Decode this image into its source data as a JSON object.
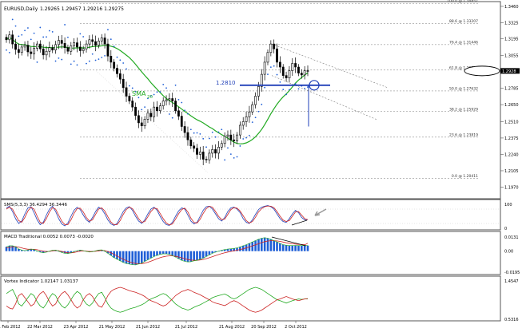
{
  "header": {
    "symbol": "EURUSD,Daily",
    "ohlc": "1.29265 1.29457 1.29216 1.29275"
  },
  "colors": {
    "candle": "#000000",
    "sma": "#22aa22",
    "sar": "#1f5fd6",
    "fib": "#777777",
    "annotation": "#1f3fb8",
    "stoch_main": "#1f3fb8",
    "stoch_signal": "#cc2222",
    "macd_hist": "#1f5fd6",
    "macd_signal": "#cc2222",
    "vortex_plus": "#22aa22",
    "vortex_minus": "#cc2222",
    "arrow": "#999999"
  },
  "chart_data": [
    {
      "type": "candlestick",
      "title": "EURUSD,Daily",
      "ylim": [
        1.196,
        1.346
      ],
      "y_ticks": [
        "1.3460",
        "1.3325",
        "1.3195",
        "1.3055",
        "1.2920",
        "1.2785",
        "1.2650",
        "1.2510",
        "1.2375",
        "1.2240",
        "1.2105",
        "1.1970"
      ],
      "x_ticks": [
        "21 Feb 2012",
        "22 Mar 2012",
        "23 Apr 2012",
        "21 May 2012",
        "21 Jun 2012",
        "21 Jul 2012",
        "21 Aug 2012",
        "20 Sep 2012",
        "2 Oct 2012"
      ],
      "close": [
        1.3185,
        1.3225,
        1.315,
        1.3105,
        1.308,
        1.3125,
        1.314,
        1.3085,
        1.307,
        1.3115,
        1.315,
        1.311,
        1.306,
        1.309,
        1.312,
        1.31,
        1.3145,
        1.318,
        1.3155,
        1.312,
        1.309,
        1.3135,
        1.316,
        1.3125,
        1.3095,
        1.311,
        1.315,
        1.3185,
        1.317,
        1.314,
        1.3175,
        1.32,
        1.315,
        1.305,
        1.3,
        1.295,
        1.2905,
        1.286,
        1.279,
        1.272,
        1.268,
        1.263,
        1.256,
        1.25,
        1.2475,
        1.253,
        1.258,
        1.255,
        1.263,
        1.26,
        1.264,
        1.268,
        1.269,
        1.27,
        1.268,
        1.26,
        1.2555,
        1.247,
        1.242,
        1.236,
        1.231,
        1.229,
        1.224,
        1.226,
        1.22,
        1.2195,
        1.225,
        1.228,
        1.225,
        1.23,
        1.233,
        1.239,
        1.24,
        1.236,
        1.235,
        1.24,
        1.248,
        1.251,
        1.255,
        1.259,
        1.265,
        1.272,
        1.28,
        1.29,
        1.3,
        1.308,
        1.315,
        1.311,
        1.3,
        1.296,
        1.289,
        1.287,
        1.293,
        1.299,
        1.296,
        1.291,
        1.2895,
        1.293,
        1.2928
      ],
      "series": [
        {
          "name": "SMA20"
        },
        {
          "name": "Parabolic SAR"
        }
      ],
      "fib_levels": [
        {
          "label": "100.0 @ 1.34857",
          "value": 1.3485
        },
        {
          "label": "88.6 @ 1.33207",
          "value": 1.332
        },
        {
          "label": "76.4 @ 1.31446",
          "value": 1.3145
        },
        {
          "label": "61.8 @ 1.29350",
          "value": 1.2935
        },
        {
          "label": "50.0 @ 1.27632",
          "value": 1.2763
        },
        {
          "label": "38.2 @ 1.25929",
          "value": 1.2593
        },
        {
          "label": "23.6 @ 1.23819",
          "value": 1.2382
        },
        {
          "label": "0.0 @ 1.20411",
          "value": 1.2041
        }
      ],
      "current_price": "1.2928",
      "annotations": {
        "support_label": "1.2810",
        "support_value": 1.281,
        "sma_label": "SMA",
        "sma_sub": "20"
      }
    },
    {
      "type": "line",
      "title": "SMS(5,3,3) 36.4294 36.3446",
      "ylim": [
        0,
        100
      ],
      "y_ticks": [
        "100",
        "0"
      ],
      "series": [
        {
          "name": "%K",
          "values": [
            85,
            92,
            70,
            40,
            20,
            30,
            60,
            85,
            90,
            65,
            35,
            15,
            25,
            55,
            80,
            92,
            70,
            40,
            18,
            10,
            22,
            50,
            75,
            88,
            78,
            55,
            35,
            25,
            45,
            70,
            88,
            80,
            60,
            35,
            18,
            12,
            20,
            45,
            70,
            85,
            90,
            75,
            50,
            30,
            20,
            35,
            60,
            80,
            88,
            75,
            50,
            28,
            15,
            12,
            25,
            50,
            72,
            85,
            80,
            55,
            30,
            18,
            25,
            50,
            75,
            90,
            92,
            80,
            60,
            40,
            30,
            45,
            70,
            85,
            88,
            80,
            65,
            40,
            25,
            20,
            35,
            58,
            78,
            88,
            92,
            95,
            90,
            80,
            60,
            40,
            28,
            25,
            40,
            60,
            75,
            65,
            45,
            35,
            36
          ]
        },
        {
          "name": "%D",
          "values": [
            80,
            88,
            80,
            55,
            32,
            25,
            45,
            72,
            88,
            80,
            50,
            25,
            20,
            40,
            68,
            86,
            80,
            55,
            30,
            15,
            15,
            35,
            62,
            82,
            84,
            68,
            45,
            30,
            35,
            58,
            80,
            85,
            72,
            48,
            26,
            15,
            15,
            32,
            58,
            78,
            88,
            82,
            62,
            40,
            25,
            28,
            48,
            70,
            84,
            82,
            62,
            40,
            22,
            14,
            18,
            38,
            60,
            78,
            84,
            68,
            42,
            24,
            22,
            38,
            62,
            82,
            92,
            88,
            70,
            50,
            36,
            38,
            58,
            78,
            86,
            84,
            72,
            52,
            32,
            22,
            28,
            46,
            68,
            82,
            90,
            93,
            92,
            86,
            70,
            50,
            34,
            28,
            32,
            50,
            68,
            70,
            55,
            40,
            36
          ]
        }
      ]
    },
    {
      "type": "line",
      "title": "MACD Traditional 0.0052 0.0073 -0.0020",
      "ylim": [
        -0.0195,
        0.0131
      ],
      "y_ticks": [
        "0.0131",
        "0.00",
        "-0.0195"
      ],
      "series": [
        {
          "name": "MACD",
          "values": [
            0.004,
            0.005,
            0.005,
            0.004,
            0.002,
            0.001,
            0.0005,
            0.001,
            0.002,
            0.0015,
            0.0,
            -0.001,
            -0.0015,
            -0.001,
            0.0,
            0.0008,
            0.001,
            0.0,
            -0.0012,
            -0.002,
            -0.0022,
            -0.0015,
            -0.0005,
            0.0005,
            0.001,
            0.0005,
            -0.0003,
            -0.0008,
            -0.0005,
            0.0003,
            0.001,
            0.0012,
            0.0,
            -0.002,
            -0.004,
            -0.006,
            -0.0075,
            -0.009,
            -0.0105,
            -0.0115,
            -0.012,
            -0.0125,
            -0.0128,
            -0.012,
            -0.011,
            -0.0095,
            -0.008,
            -0.0065,
            -0.005,
            -0.004,
            -0.003,
            -0.0025,
            -0.0025,
            -0.003,
            -0.004,
            -0.0055,
            -0.007,
            -0.0085,
            -0.0095,
            -0.01,
            -0.0098,
            -0.009,
            -0.0085,
            -0.0075,
            -0.0065,
            -0.005,
            -0.0035,
            -0.002,
            -0.001,
            0.0,
            0.0008,
            0.0015,
            0.002,
            0.0022,
            0.0025,
            0.003,
            0.004,
            0.005,
            0.006,
            0.0072,
            0.0085,
            0.0098,
            0.011,
            0.012,
            0.0125,
            0.012,
            0.011,
            0.0098,
            0.0085,
            0.0072,
            0.006,
            0.0055,
            0.0052,
            0.0052,
            0.0053,
            0.0052,
            0.0052,
            0.0052,
            0.0052
          ]
        },
        {
          "name": "Signal",
          "values": [
            0.003,
            0.0035,
            0.004,
            0.0042,
            0.0038,
            0.003,
            0.0022,
            0.0018,
            0.0018,
            0.0017,
            0.0013,
            0.0006,
            0.0,
            -0.0003,
            -0.0002,
            0.0002,
            0.0006,
            0.0004,
            -0.0002,
            -0.001,
            -0.0016,
            -0.0016,
            -0.0012,
            -0.0006,
            0.0,
            0.0002,
            0.0,
            -0.0003,
            -0.0004,
            -0.0001,
            0.0003,
            0.0007,
            0.0005,
            -0.0004,
            -0.0016,
            -0.003,
            -0.0045,
            -0.006,
            -0.0075,
            -0.0088,
            -0.0099,
            -0.0108,
            -0.0115,
            -0.0117,
            -0.0116,
            -0.0111,
            -0.0103,
            -0.0093,
            -0.0082,
            -0.0071,
            -0.0061,
            -0.0053,
            -0.0047,
            -0.0044,
            -0.0044,
            -0.0048,
            -0.0054,
            -0.0062,
            -0.0071,
            -0.0078,
            -0.0083,
            -0.0085,
            -0.0085,
            -0.0082,
            -0.0077,
            -0.007,
            -0.0061,
            -0.0051,
            -0.0042,
            -0.0032,
            -0.0023,
            -0.0015,
            -0.0008,
            -0.0002,
            0.0003,
            0.0009,
            0.0015,
            0.0022,
            0.003,
            0.0039,
            0.0049,
            0.0059,
            0.0069,
            0.0079,
            0.0088,
            0.0094,
            0.0097,
            0.0097,
            0.0095,
            0.009,
            0.0084,
            0.0078,
            0.0073,
            0.0069,
            0.0066,
            0.0063,
            0.0061,
            0.0059,
            0.0073
          ]
        }
      ]
    },
    {
      "type": "line",
      "title": "Vortex Indicator 1.02147 1.03137",
      "ylim": [
        0.5316,
        1.4547
      ],
      "y_ticks": [
        "1.4547",
        "0.5316"
      ],
      "series": [
        {
          "name": "VI+",
          "values": [
            1.15,
            1.2,
            1.25,
            1.1,
            0.9,
            0.85,
            0.95,
            1.05,
            1.15,
            1.1,
            0.95,
            0.85,
            0.8,
            0.9,
            1.05,
            1.15,
            1.1,
            0.95,
            0.85,
            0.8,
            0.88,
            1.0,
            1.12,
            1.2,
            1.15,
            1.0,
            0.9,
            0.85,
            0.92,
            1.05,
            1.15,
            1.18,
            1.05,
            0.9,
            0.8,
            0.75,
            0.72,
            0.7,
            0.72,
            0.75,
            0.78,
            0.8,
            0.82,
            0.85,
            0.88,
            0.92,
            0.98,
            1.02,
            1.05,
            1.08,
            1.12,
            1.15,
            1.12,
            1.05,
            0.98,
            0.9,
            0.85,
            0.8,
            0.78,
            0.75,
            0.78,
            0.82,
            0.85,
            0.88,
            0.92,
            0.96,
            1.0,
            1.05,
            1.08,
            1.1,
            1.12,
            1.14,
            1.1,
            1.05,
            1.02,
            1.05,
            1.1,
            1.15,
            1.2,
            1.25,
            1.28,
            1.3,
            1.28,
            1.25,
            1.2,
            1.15,
            1.1,
            1.05,
            1.0,
            0.98,
            0.95,
            0.92,
            0.95,
            0.98,
            1.0,
            1.02,
            1.01,
            1.02,
            1.02
          ]
        },
        {
          "name": "VI-",
          "values": [
            0.85,
            0.8,
            0.78,
            0.9,
            1.1,
            1.15,
            1.05,
            0.95,
            0.85,
            0.9,
            1.05,
            1.15,
            1.2,
            1.1,
            0.95,
            0.85,
            0.9,
            1.05,
            1.15,
            1.2,
            1.12,
            1.0,
            0.88,
            0.8,
            0.85,
            1.0,
            1.1,
            1.15,
            1.08,
            0.95,
            0.85,
            0.82,
            0.95,
            1.1,
            1.2,
            1.25,
            1.28,
            1.3,
            1.28,
            1.25,
            1.22,
            1.2,
            1.18,
            1.15,
            1.12,
            1.08,
            1.02,
            0.98,
            0.95,
            0.92,
            0.88,
            0.85,
            0.88,
            0.95,
            1.02,
            1.1,
            1.15,
            1.2,
            1.22,
            1.25,
            1.22,
            1.18,
            1.15,
            1.12,
            1.08,
            1.04,
            1.0,
            0.95,
            0.92,
            0.9,
            0.88,
            0.86,
            0.9,
            0.95,
            0.98,
            0.95,
            0.9,
            0.85,
            0.8,
            0.75,
            0.72,
            0.7,
            0.72,
            0.75,
            0.8,
            0.85,
            0.9,
            0.95,
            1.0,
            1.02,
            1.05,
            1.08,
            1.05,
            1.02,
            1.0,
            0.98,
            1.0,
            1.02,
            1.03
          ]
        }
      ]
    }
  ]
}
